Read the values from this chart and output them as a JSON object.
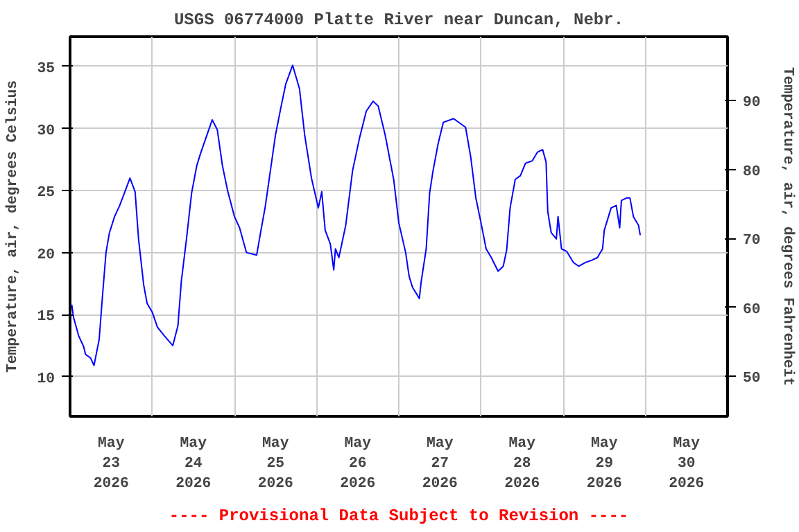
{
  "chart_data": {
    "type": "line",
    "title": "USGS 06774000 Platte River near Duncan, Nebr.",
    "ylabel": "Temperature, air, degrees Celsius",
    "y2label": "Temperature, air, degrees Fahrenheit",
    "annotations": [
      "---- Provisional Data Subject to Revision ----"
    ],
    "xlim": [
      "2026-05-23T00:00",
      "2026-05-31T00:00"
    ],
    "xticks": [
      {
        "value": "2026-05-23T12:00",
        "label": "May\n23\n2026"
      },
      {
        "value": "2026-05-24T12:00",
        "label": "May\n24\n2026"
      },
      {
        "value": "2026-05-25T12:00",
        "label": "May\n25\n2026"
      },
      {
        "value": "2026-05-26T12:00",
        "label": "May\n26\n2026"
      },
      {
        "value": "2026-05-27T12:00",
        "label": "May\n27\n2026"
      },
      {
        "value": "2026-05-28T12:00",
        "label": "May\n28\n2026"
      },
      {
        "value": "2026-05-29T12:00",
        "label": "May\n29\n2026"
      },
      {
        "value": "2026-05-30T12:00",
        "label": "May\n30\n2026"
      },
      {
        "value": "2026-05-24T00:00",
        "label": null
      },
      {
        "value": "2026-05-25T00:00",
        "label": null
      },
      {
        "value": "2026-05-26T00:00",
        "label": null
      },
      {
        "value": "2026-05-27T00:00",
        "label": null
      },
      {
        "value": "2026-05-28T00:00",
        "label": null
      },
      {
        "value": "2026-05-29T00:00",
        "label": null
      },
      {
        "value": "2026-05-30T00:00",
        "label": null
      }
    ],
    "ylim": [
      6.8,
      37.4
    ],
    "yticks": [
      10,
      15,
      20,
      25,
      30,
      35
    ],
    "y2lim": [
      44.2,
      99.3
    ],
    "y2ticks": [
      50,
      60,
      70,
      80,
      90
    ],
    "grid": true,
    "line_style": "solid",
    "marker": "none",
    "x": [
      "2026-05-23T00:30",
      "2026-05-23T01:00",
      "2026-05-23T02:30",
      "2026-05-23T04:00",
      "2026-05-23T04:30",
      "2026-05-23T06:00",
      "2026-05-23T07:00",
      "2026-05-23T08:30",
      "2026-05-23T09:30",
      "2026-05-23T10:30",
      "2026-05-23T11:30",
      "2026-05-23T13:00",
      "2026-05-23T14:30",
      "2026-05-23T16:00",
      "2026-05-23T17:30",
      "2026-05-23T19:00",
      "2026-05-23T20:00",
      "2026-05-23T21:30",
      "2026-05-23T22:30",
      "2026-05-24T00:00",
      "2026-05-24T01:30",
      "2026-05-24T03:30",
      "2026-05-24T06:00",
      "2026-05-24T07:30",
      "2026-05-24T08:30",
      "2026-05-24T10:00",
      "2026-05-24T11:30",
      "2026-05-24T13:00",
      "2026-05-24T14:00",
      "2026-05-24T16:30",
      "2026-05-24T17:30",
      "2026-05-24T19:00",
      "2026-05-24T20:30",
      "2026-05-24T22:00",
      "2026-05-25T00:00",
      "2026-05-25T01:30",
      "2026-05-25T03:30",
      "2026-05-25T06:30",
      "2026-05-25T07:30",
      "2026-05-25T09:00",
      "2026-05-25T10:30",
      "2026-05-25T12:00",
      "2026-05-25T13:30",
      "2026-05-25T15:00",
      "2026-05-25T17:00",
      "2026-05-25T19:00",
      "2026-05-25T20:30",
      "2026-05-25T22:30",
      "2026-05-26T00:30",
      "2026-05-26T01:30",
      "2026-05-26T02:30",
      "2026-05-26T04:00",
      "2026-05-26T05:00",
      "2026-05-26T05:30",
      "2026-05-26T06:30",
      "2026-05-26T08:30",
      "2026-05-26T10:30",
      "2026-05-26T12:30",
      "2026-05-26T14:30",
      "2026-05-26T16:30",
      "2026-05-26T18:00",
      "2026-05-26T20:00",
      "2026-05-26T22:30",
      "2026-05-27T00:00",
      "2026-05-27T02:00",
      "2026-05-27T03:00",
      "2026-05-27T04:00",
      "2026-05-27T06:00",
      "2026-05-27T06:30",
      "2026-05-27T08:00",
      "2026-05-27T09:00",
      "2026-05-27T10:00",
      "2026-05-27T11:30",
      "2026-05-27T13:00",
      "2026-05-27T16:00",
      "2026-05-27T19:30",
      "2026-05-27T21:00",
      "2026-05-27T22:30",
      "2026-05-28T00:00",
      "2026-05-28T01:30",
      "2026-05-28T03:00",
      "2026-05-28T05:00",
      "2026-05-28T06:30",
      "2026-05-28T07:30",
      "2026-05-28T08:30",
      "2026-05-28T10:00",
      "2026-05-28T11:30",
      "2026-05-28T13:00",
      "2026-05-28T15:00",
      "2026-05-28T16:30",
      "2026-05-28T18:00",
      "2026-05-28T19:00",
      "2026-05-28T19:30",
      "2026-05-28T20:30",
      "2026-05-28T22:00",
      "2026-05-28T22:30",
      "2026-05-28T23:30",
      "2026-05-29T01:00",
      "2026-05-29T03:00",
      "2026-05-29T04:30",
      "2026-05-29T06:30",
      "2026-05-29T08:30",
      "2026-05-29T10:00",
      "2026-05-29T11:30",
      "2026-05-29T12:00",
      "2026-05-29T14:00",
      "2026-05-29T15:30",
      "2026-05-29T16:30",
      "2026-05-29T17:00",
      "2026-05-29T18:30",
      "2026-05-29T19:30",
      "2026-05-29T20:30",
      "2026-05-29T22:00",
      "2026-05-29T22:30"
    ],
    "series": [
      {
        "color": "#0000ff",
        "values": [
          15.8,
          14.8,
          13.3,
          12.4,
          11.8,
          11.5,
          10.9,
          13.0,
          16.6,
          20.0,
          21.6,
          22.9,
          23.8,
          24.9,
          26.0,
          24.9,
          21.1,
          17.4,
          15.9,
          15.2,
          14.0,
          13.3,
          12.5,
          14.1,
          17.7,
          21.1,
          24.8,
          27.0,
          27.9,
          29.9,
          30.7,
          29.9,
          27.0,
          25.0,
          22.9,
          22.0,
          20.0,
          19.8,
          21.4,
          23.7,
          26.6,
          29.5,
          31.6,
          33.6,
          35.1,
          33.2,
          29.5,
          26.0,
          23.6,
          24.9,
          21.8,
          20.7,
          18.6,
          20.3,
          19.6,
          22.2,
          26.6,
          29.2,
          31.4,
          32.2,
          31.8,
          29.5,
          25.9,
          22.4,
          20.0,
          18.1,
          17.2,
          16.3,
          17.6,
          20.3,
          24.8,
          26.6,
          28.8,
          30.5,
          30.8,
          30.1,
          27.7,
          24.4,
          22.4,
          20.3,
          19.6,
          18.5,
          18.9,
          20.2,
          23.6,
          25.9,
          26.2,
          27.2,
          27.4,
          28.1,
          28.3,
          27.3,
          23.3,
          21.6,
          21.1,
          22.9,
          20.3,
          20.1,
          19.2,
          18.9,
          19.2,
          19.4,
          19.6,
          20.3,
          21.8,
          23.6,
          23.8,
          22.0,
          24.2,
          24.4,
          24.4,
          22.9,
          22.2,
          21.4
        ]
      }
    ]
  }
}
